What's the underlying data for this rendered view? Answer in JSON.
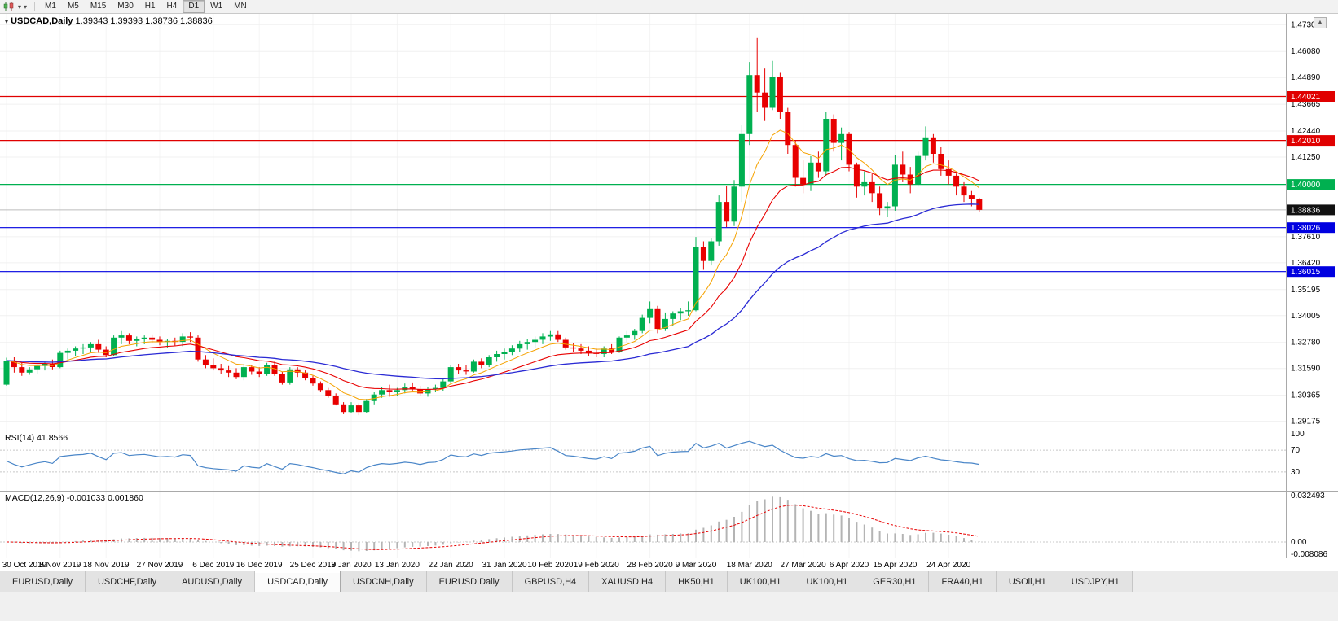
{
  "icons": {
    "dropdown_caret": "▾",
    "collapse_arrow": "▾",
    "scroll_up": "▲"
  },
  "toolbar": {
    "timeframes": [
      {
        "label": "M1",
        "active": false
      },
      {
        "label": "M5",
        "active": false
      },
      {
        "label": "M15",
        "active": false
      },
      {
        "label": "M30",
        "active": false
      },
      {
        "label": "H1",
        "active": false
      },
      {
        "label": "H4",
        "active": false
      },
      {
        "label": "D1",
        "active": true
      },
      {
        "label": "W1",
        "active": false
      },
      {
        "label": "MN",
        "active": false
      }
    ]
  },
  "chart": {
    "symbol_period": "USDCAD,Daily",
    "ohlc": "1.39343 1.39393 1.38736 1.38836",
    "colors": {
      "up": "#00B050",
      "down": "#E80000",
      "ma_fast": "#F5A200",
      "ma_mid": "#E80000",
      "ma_slow": "#2A2AD4",
      "rsi": "#4A86C8",
      "macd_hist": "#B4B4B4",
      "macd_signal": "#E80000"
    },
    "price_axis": {
      "gridlines": [
        "1.47305",
        "1.46080",
        "1.44890",
        "1.43665",
        "1.42440",
        "1.41250",
        "1.37610",
        "1.36420",
        "1.35195",
        "1.34005",
        "1.32780",
        "1.31590",
        "1.30365",
        "1.29175"
      ]
    },
    "levels": [
      {
        "price": 1.44021,
        "label": "1.44021",
        "color": "#E00000"
      },
      {
        "price": 1.4201,
        "label": "1.42010",
        "color": "#E00000"
      },
      {
        "price": 1.4,
        "label": "1.40000",
        "color": "#00B050"
      },
      {
        "price": 1.38026,
        "label": "1.38026",
        "color": "#0000E0"
      },
      {
        "price": 1.36015,
        "label": "1.36015",
        "color": "#0000E0"
      }
    ],
    "current_price": {
      "price": 1.38836,
      "label": "1.38836"
    },
    "date_axis": [
      {
        "text": "30 Oct 2019",
        "index": 0
      },
      {
        "text": "8 Nov 2019",
        "index": 7
      },
      {
        "text": "18 Nov 2019",
        "index": 13
      },
      {
        "text": "27 Nov 2019",
        "index": 20
      },
      {
        "text": "6 Dec 2019",
        "index": 27
      },
      {
        "text": "16 Dec 2019",
        "index": 33
      },
      {
        "text": "25 Dec 2019",
        "index": 40
      },
      {
        "text": "3 Jan 2020",
        "index": 45
      },
      {
        "text": "13 Jan 2020",
        "index": 51
      },
      {
        "text": "22 Jan 2020",
        "index": 58
      },
      {
        "text": "31 Jan 2020",
        "index": 65
      },
      {
        "text": "10 Feb 2020",
        "index": 71
      },
      {
        "text": "19 Feb 2020",
        "index": 77
      },
      {
        "text": "28 Feb 2020",
        "index": 84
      },
      {
        "text": "9 Mar 2020",
        "index": 90
      },
      {
        "text": "18 Mar 2020",
        "index": 97
      },
      {
        "text": "27 Mar 2020",
        "index": 104
      },
      {
        "text": "6 Apr 2020",
        "index": 110
      },
      {
        "text": "15 Apr 2020",
        "index": 116
      },
      {
        "text": "24 Apr 2020",
        "index": 123
      }
    ]
  },
  "rsi": {
    "label": "RSI(14) 41.8566",
    "period": 14,
    "value": 41.8566,
    "axis": [
      "100",
      "70",
      "30"
    ]
  },
  "macd": {
    "label": "MACD(12,26,9) -0.001033 0.001860",
    "fast": 12,
    "slow": 26,
    "signal": 9,
    "value": -0.001033,
    "signal_value": 0.00186,
    "axis_top": "0.032493",
    "axis_zero": "0.00",
    "axis_bottom": "-0.008086"
  },
  "chart_data": {
    "type": "candlestick",
    "symbol": "USDCAD",
    "timeframe": "Daily",
    "x_range": [
      "30 Oct 2019",
      "30 Apr 2020"
    ],
    "y_range": [
      1.29175,
      1.47305
    ],
    "candle_format": [
      "open",
      "high",
      "low",
      "close"
    ],
    "candles": [
      [
        1.3085,
        1.3208,
        1.308,
        1.3195
      ],
      [
        1.3195,
        1.321,
        1.314,
        1.3165
      ],
      [
        1.3165,
        1.3185,
        1.3125,
        1.314
      ],
      [
        1.314,
        1.3165,
        1.313,
        1.3155
      ],
      [
        1.3155,
        1.3175,
        1.3135,
        1.317
      ],
      [
        1.317,
        1.319,
        1.315,
        1.318
      ],
      [
        1.318,
        1.32,
        1.3155,
        1.3165
      ],
      [
        1.3165,
        1.324,
        1.316,
        1.323
      ],
      [
        1.323,
        1.325,
        1.32,
        1.324
      ],
      [
        1.324,
        1.326,
        1.3215,
        1.325
      ],
      [
        1.325,
        1.327,
        1.3225,
        1.3255
      ],
      [
        1.3255,
        1.328,
        1.3235,
        1.327
      ],
      [
        1.327,
        1.329,
        1.323,
        1.3245
      ],
      [
        1.3245,
        1.326,
        1.321,
        1.322
      ],
      [
        1.322,
        1.331,
        1.3215,
        1.33
      ],
      [
        1.33,
        1.333,
        1.327,
        1.331
      ],
      [
        1.331,
        1.332,
        1.327,
        1.3285
      ],
      [
        1.3285,
        1.3305,
        1.326,
        1.3295
      ],
      [
        1.3295,
        1.331,
        1.327,
        1.33
      ],
      [
        1.33,
        1.3315,
        1.3275,
        1.329
      ],
      [
        1.329,
        1.3305,
        1.3265,
        1.328
      ],
      [
        1.328,
        1.3295,
        1.3255,
        1.3285
      ],
      [
        1.3285,
        1.33,
        1.326,
        1.328
      ],
      [
        1.328,
        1.332,
        1.326,
        1.3305
      ],
      [
        1.3305,
        1.3325,
        1.328,
        1.33
      ],
      [
        1.33,
        1.331,
        1.319,
        1.32
      ],
      [
        1.32,
        1.322,
        1.316,
        1.3175
      ],
      [
        1.3175,
        1.3205,
        1.315,
        1.316
      ],
      [
        1.316,
        1.318,
        1.3135,
        1.315
      ],
      [
        1.315,
        1.317,
        1.312,
        1.314
      ],
      [
        1.314,
        1.316,
        1.311,
        1.312
      ],
      [
        1.312,
        1.318,
        1.3105,
        1.3165
      ],
      [
        1.3165,
        1.3175,
        1.313,
        1.3145
      ],
      [
        1.3145,
        1.3165,
        1.312,
        1.3135
      ],
      [
        1.3135,
        1.3185,
        1.3125,
        1.3175
      ],
      [
        1.3175,
        1.319,
        1.3125,
        1.3135
      ],
      [
        1.3135,
        1.3145,
        1.3085,
        1.3095
      ],
      [
        1.3095,
        1.3165,
        1.3085,
        1.3155
      ],
      [
        1.3155,
        1.3165,
        1.312,
        1.314
      ],
      [
        1.314,
        1.315,
        1.3105,
        1.3115
      ],
      [
        1.3115,
        1.3125,
        1.308,
        1.309
      ],
      [
        1.309,
        1.31,
        1.305,
        1.306
      ],
      [
        1.306,
        1.307,
        1.3025,
        1.3035
      ],
      [
        1.3035,
        1.3045,
        1.299,
        1.2995
      ],
      [
        1.2995,
        1.3005,
        1.295,
        1.296
      ],
      [
        1.296,
        1.3005,
        1.2955,
        1.299
      ],
      [
        1.299,
        1.3,
        1.2945,
        1.296
      ],
      [
        1.296,
        1.302,
        1.2955,
        1.301
      ],
      [
        1.301,
        1.305,
        1.2995,
        1.304
      ],
      [
        1.304,
        1.3075,
        1.3025,
        1.306
      ],
      [
        1.306,
        1.3085,
        1.303,
        1.305
      ],
      [
        1.305,
        1.307,
        1.3035,
        1.306
      ],
      [
        1.306,
        1.309,
        1.3045,
        1.3075
      ],
      [
        1.3075,
        1.3095,
        1.305,
        1.3065
      ],
      [
        1.3065,
        1.308,
        1.3035,
        1.3045
      ],
      [
        1.3045,
        1.3075,
        1.303,
        1.3065
      ],
      [
        1.3065,
        1.3085,
        1.305,
        1.307
      ],
      [
        1.307,
        1.311,
        1.3055,
        1.31
      ],
      [
        1.31,
        1.3175,
        1.309,
        1.3165
      ],
      [
        1.3165,
        1.318,
        1.3135,
        1.315
      ],
      [
        1.315,
        1.3175,
        1.313,
        1.3145
      ],
      [
        1.3145,
        1.32,
        1.314,
        1.319
      ],
      [
        1.319,
        1.3205,
        1.316,
        1.3175
      ],
      [
        1.3175,
        1.322,
        1.3165,
        1.321
      ],
      [
        1.321,
        1.324,
        1.319,
        1.3225
      ],
      [
        1.3225,
        1.325,
        1.32,
        1.3235
      ],
      [
        1.3235,
        1.3265,
        1.322,
        1.325
      ],
      [
        1.325,
        1.3285,
        1.3235,
        1.327
      ],
      [
        1.327,
        1.3295,
        1.3245,
        1.328
      ],
      [
        1.328,
        1.3305,
        1.3255,
        1.329
      ],
      [
        1.329,
        1.332,
        1.327,
        1.3305
      ],
      [
        1.3305,
        1.333,
        1.3285,
        1.3315
      ],
      [
        1.3315,
        1.333,
        1.328,
        1.329
      ],
      [
        1.329,
        1.33,
        1.3245,
        1.3255
      ],
      [
        1.3255,
        1.3275,
        1.3235,
        1.325
      ],
      [
        1.325,
        1.327,
        1.3225,
        1.324
      ],
      [
        1.324,
        1.326,
        1.3215,
        1.323
      ],
      [
        1.323,
        1.325,
        1.321,
        1.3225
      ],
      [
        1.3225,
        1.326,
        1.321,
        1.325
      ],
      [
        1.325,
        1.327,
        1.3225,
        1.3235
      ],
      [
        1.3235,
        1.3305,
        1.323,
        1.33
      ],
      [
        1.33,
        1.333,
        1.328,
        1.331
      ],
      [
        1.331,
        1.334,
        1.329,
        1.333
      ],
      [
        1.333,
        1.3405,
        1.332,
        1.339
      ],
      [
        1.339,
        1.3465,
        1.3365,
        1.343
      ],
      [
        1.343,
        1.3445,
        1.332,
        1.334
      ],
      [
        1.334,
        1.3415,
        1.333,
        1.3385
      ],
      [
        1.3385,
        1.342,
        1.3355,
        1.341
      ],
      [
        1.341,
        1.3435,
        1.338,
        1.342
      ],
      [
        1.342,
        1.3465,
        1.34,
        1.3425
      ],
      [
        1.3425,
        1.376,
        1.342,
        1.3715
      ],
      [
        1.3715,
        1.374,
        1.361,
        1.365
      ],
      [
        1.365,
        1.3755,
        1.363,
        1.374
      ],
      [
        1.374,
        1.395,
        1.372,
        1.392
      ],
      [
        1.392,
        1.3995,
        1.3805,
        1.383
      ],
      [
        1.383,
        1.402,
        1.381,
        1.399
      ],
      [
        1.399,
        1.427,
        1.392,
        1.423
      ],
      [
        1.423,
        1.456,
        1.418,
        1.45
      ],
      [
        1.45,
        1.4669,
        1.433,
        1.442
      ],
      [
        1.442,
        1.453,
        1.429,
        1.435
      ],
      [
        1.435,
        1.4565,
        1.434,
        1.449
      ],
      [
        1.449,
        1.451,
        1.43,
        1.433
      ],
      [
        1.433,
        1.435,
        1.414,
        1.418
      ],
      [
        1.418,
        1.42,
        1.399,
        1.403
      ],
      [
        1.403,
        1.411,
        1.396,
        1.4
      ],
      [
        1.4,
        1.413,
        1.397,
        1.41
      ],
      [
        1.41,
        1.415,
        1.403,
        1.406
      ],
      [
        1.406,
        1.433,
        1.404,
        1.43
      ],
      [
        1.43,
        1.432,
        1.415,
        1.419
      ],
      [
        1.419,
        1.426,
        1.411,
        1.423
      ],
      [
        1.423,
        1.424,
        1.406,
        1.409
      ],
      [
        1.409,
        1.41,
        1.394,
        1.399
      ],
      [
        1.399,
        1.406,
        1.395,
        1.401
      ],
      [
        1.401,
        1.405,
        1.392,
        1.396
      ],
      [
        1.396,
        1.399,
        1.386,
        1.389
      ],
      [
        1.389,
        1.392,
        1.385,
        1.39
      ],
      [
        1.39,
        1.4135,
        1.388,
        1.409
      ],
      [
        1.409,
        1.415,
        1.401,
        1.4045
      ],
      [
        1.4045,
        1.408,
        1.396,
        1.4
      ],
      [
        1.4,
        1.415,
        1.399,
        1.413
      ],
      [
        1.413,
        1.4265,
        1.411,
        1.4215
      ],
      [
        1.4215,
        1.423,
        1.41,
        1.414
      ],
      [
        1.414,
        1.417,
        1.404,
        1.407
      ],
      [
        1.407,
        1.411,
        1.4,
        1.404
      ],
      [
        1.404,
        1.405,
        1.395,
        1.399
      ],
      [
        1.399,
        1.401,
        1.392,
        1.395
      ],
      [
        1.395,
        1.397,
        1.39,
        1.3935
      ],
      [
        1.39343,
        1.39393,
        1.38736,
        1.38836
      ]
    ]
  },
  "tabs": [
    {
      "label": "EURUSD,Daily",
      "active": false
    },
    {
      "label": "USDCHF,Daily",
      "active": false
    },
    {
      "label": "AUDUSD,Daily",
      "active": false
    },
    {
      "label": "USDCAD,Daily",
      "active": true
    },
    {
      "label": "USDCNH,Daily",
      "active": false
    },
    {
      "label": "EURUSD,Daily",
      "active": false
    },
    {
      "label": "GBPUSD,H4",
      "active": false
    },
    {
      "label": "XAUUSD,H4",
      "active": false
    },
    {
      "label": "HK50,H1",
      "active": false
    },
    {
      "label": "UK100,H1",
      "active": false
    },
    {
      "label": "UK100,H1",
      "active": false
    },
    {
      "label": "GER30,H1",
      "active": false
    },
    {
      "label": "FRA40,H1",
      "active": false
    },
    {
      "label": "USOil,H1",
      "active": false
    },
    {
      "label": "USDJPY,H1",
      "active": false
    }
  ]
}
